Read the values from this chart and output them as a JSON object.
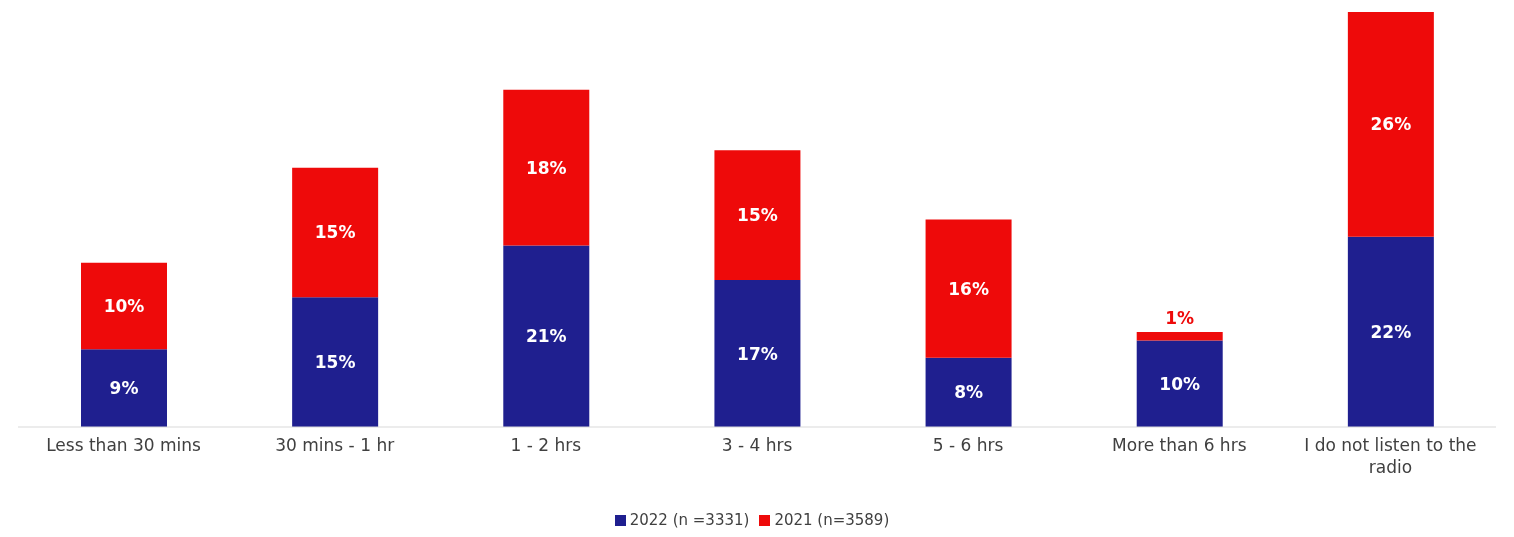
{
  "chart_data": {
    "type": "bar",
    "stacked": true,
    "legend": "bottom",
    "grid": false,
    "categories": [
      "Less than 30 mins",
      "30 mins - 1 hr",
      "1 - 2 hrs",
      "3 - 4 hrs",
      "5 - 6 hrs",
      "More than 6 hrs",
      "I do not listen to the radio"
    ],
    "series": [
      {
        "name": "2022 (n =3331)",
        "color": "#1f1f8f",
        "values": [
          9,
          15,
          21,
          17,
          8,
          10,
          22
        ],
        "value_labels": [
          "9%",
          "15%",
          "21%",
          "17%",
          "8%",
          "10%",
          "22%"
        ]
      },
      {
        "name": "2021 (n=3589)",
        "color": "#ee0a0a",
        "values": [
          10,
          15,
          18,
          15,
          16,
          1,
          26
        ],
        "value_labels": [
          "10%",
          "15%",
          "18%",
          "15%",
          "16%",
          "1%",
          "26%"
        ]
      }
    ]
  }
}
